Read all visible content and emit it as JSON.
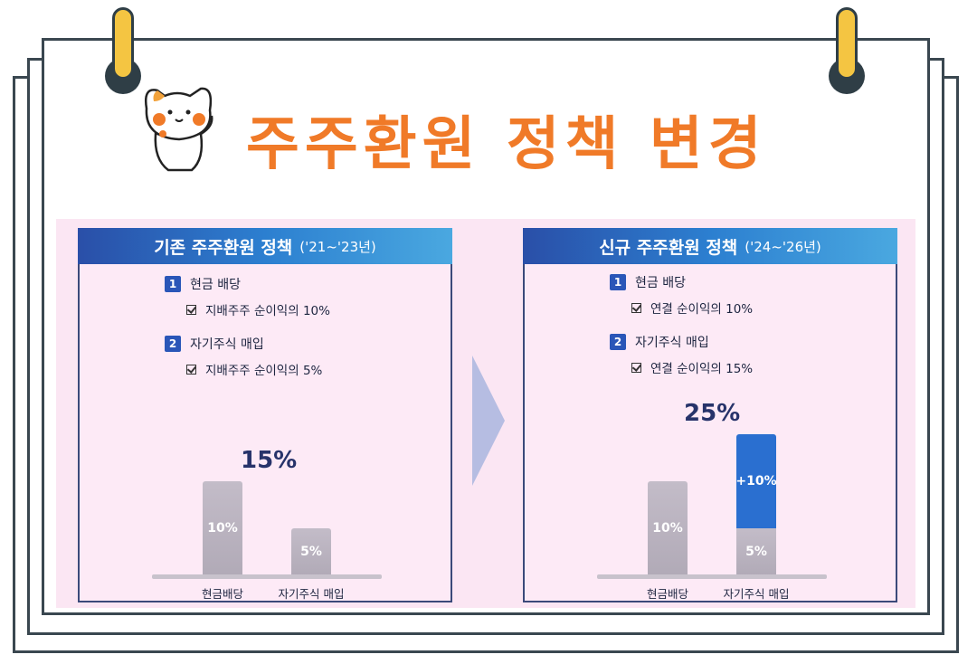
{
  "title": "주주환원 정책 변경",
  "colors": {
    "accent": "#f07a28",
    "header_blue": "#2a56b8",
    "bar_blue": "#2a6fd0",
    "bar_gray": "#b8b1be"
  },
  "left_panel": {
    "header_main": "기존 주주환원 정책",
    "header_sub": "('21~'23년)",
    "item1_num": "1",
    "item1_label": "현금 배당",
    "item1_detail": "지배주주 순이익의 10%",
    "item2_num": "2",
    "item2_label": "자기주식 매입",
    "item2_detail": "지배주주 순이익의 5%",
    "chart_data": {
      "type": "bar",
      "categories": [
        "현금배당",
        "자기주식 매입"
      ],
      "values": [
        10,
        5
      ],
      "value_labels": [
        "10%",
        "5%"
      ],
      "total_label": "15%"
    }
  },
  "right_panel": {
    "header_main": "신규 주주환원 정책",
    "header_sub": "('24~'26년)",
    "item1_num": "1",
    "item1_label": "현금 배당",
    "item1_detail": "연결 순이익의 10%",
    "item2_num": "2",
    "item2_label": "자기주식 매입",
    "item2_detail": "연결 순이익의 15%",
    "chart_data": {
      "type": "bar",
      "categories": [
        "현금배당",
        "자기주식 매입"
      ],
      "stacked": true,
      "series": [
        {
          "values": [
            10,
            5
          ],
          "labels": [
            "10%",
            "5%"
          ]
        },
        {
          "values": [
            0,
            10
          ],
          "labels": [
            "",
            "+10%"
          ]
        }
      ],
      "total_label": "25%"
    }
  }
}
